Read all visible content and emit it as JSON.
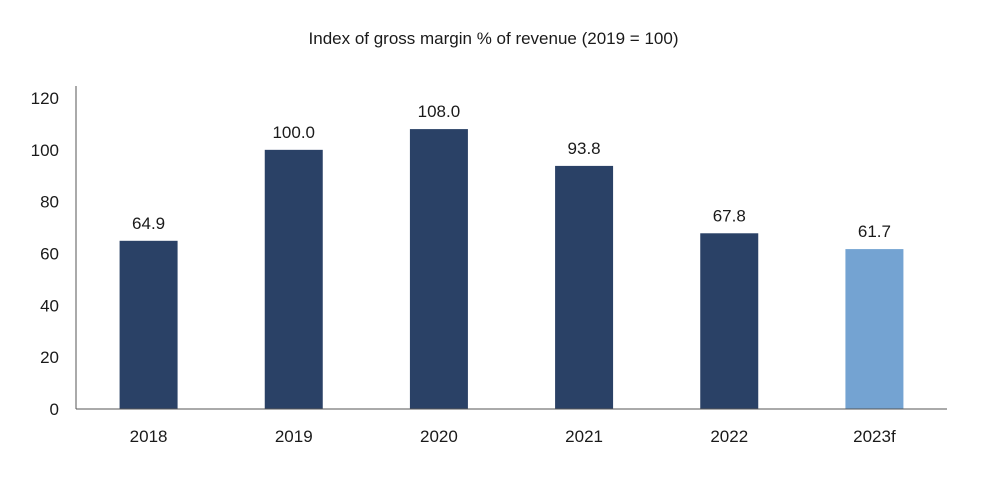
{
  "chart_data": {
    "type": "bar",
    "title": "Index of gross margin % of revenue (2019 = 100)",
    "xlabel": "",
    "ylabel": "",
    "categories": [
      "2018",
      "2019",
      "2020",
      "2021",
      "2022",
      "2023f"
    ],
    "values": [
      64.9,
      100.0,
      108.0,
      93.8,
      67.8,
      61.7
    ],
    "data_labels": [
      "64.9",
      "100.0",
      "108.0",
      "93.8",
      "67.8",
      "61.7"
    ],
    "ylim": [
      0,
      120
    ],
    "yticks": [
      0,
      20,
      40,
      60,
      80,
      100,
      120
    ],
    "grid": false,
    "legend": "none",
    "colors": {
      "actual": "#2a4166",
      "forecast": "#74a3d2",
      "axis": "#555555"
    },
    "forecast_categories": [
      "2023f"
    ]
  }
}
